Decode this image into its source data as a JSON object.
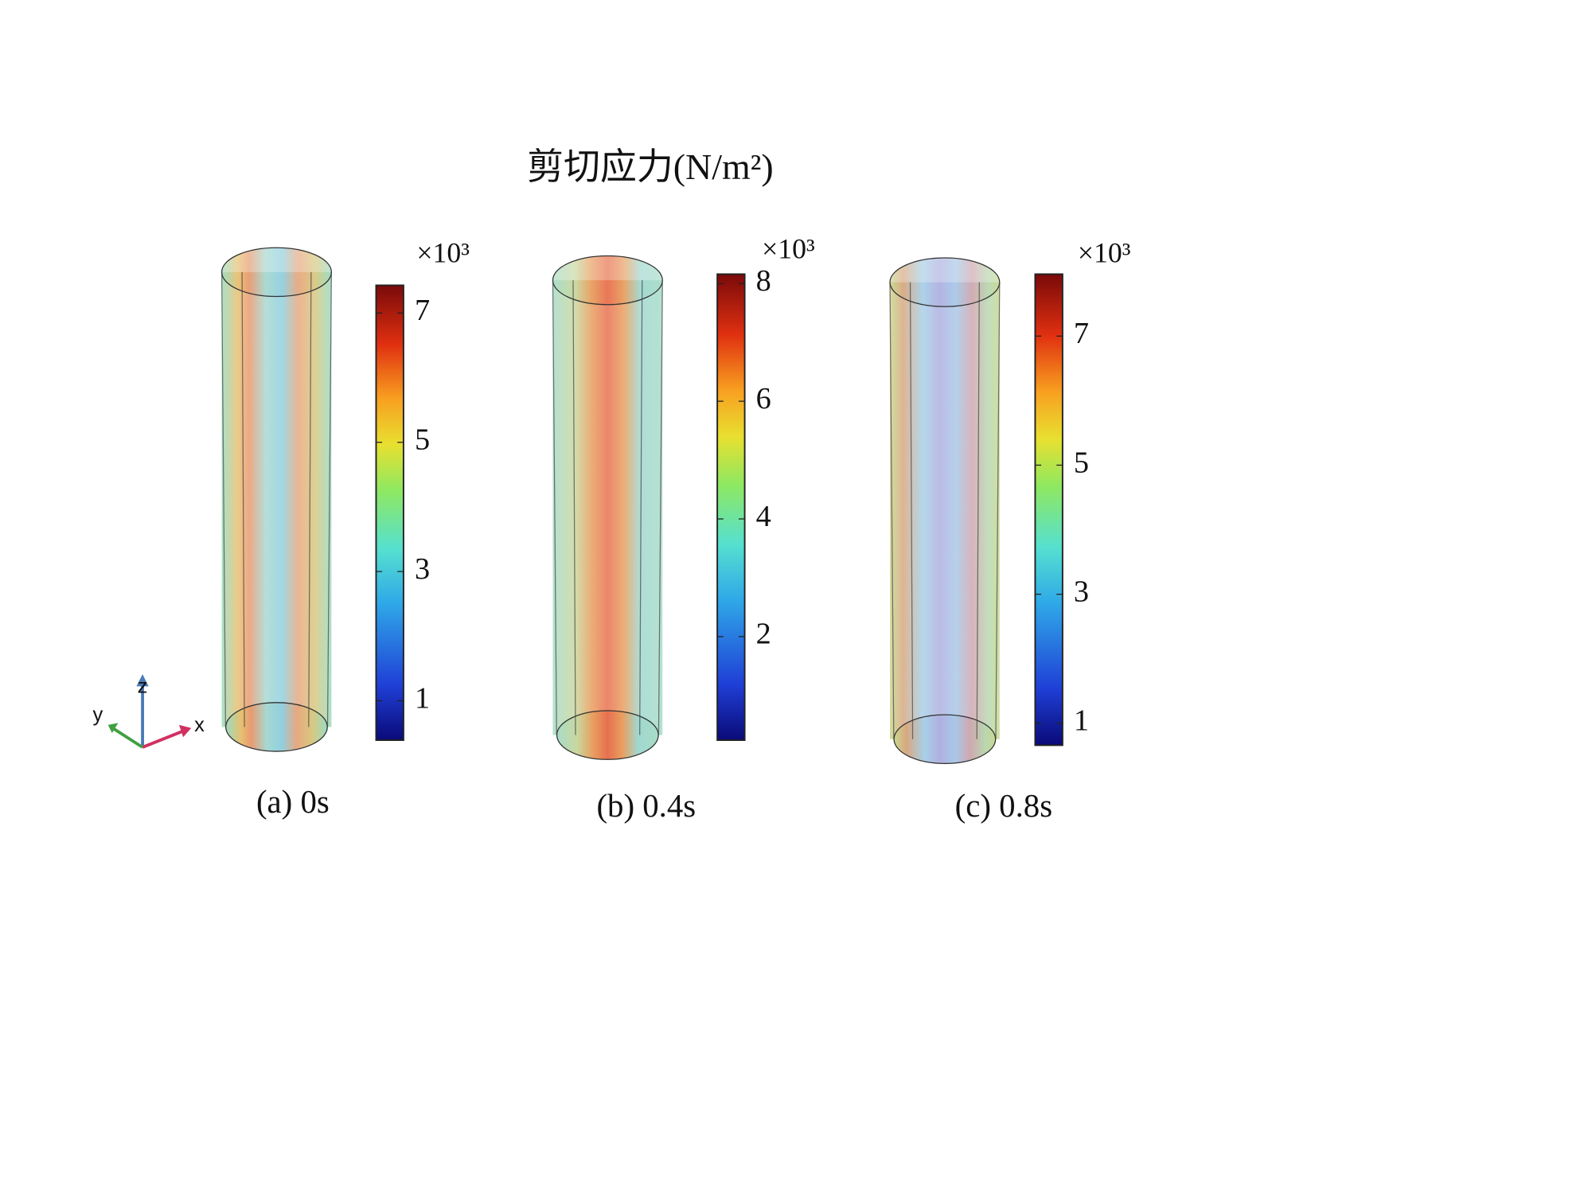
{
  "title": "剪切应力(N/m²)",
  "axis_triad": {
    "x": "x",
    "y": "y",
    "z": "z"
  },
  "panels": [
    {
      "caption": "(a) 0s",
      "multiplier": "×10³",
      "colorbar": {
        "lim": [
          0.39,
          7.43
        ],
        "ticks": [
          1,
          3,
          5,
          7
        ]
      }
    },
    {
      "caption": "(b) 0.4s",
      "multiplier": "×10³",
      "colorbar": {
        "lim": [
          0.24,
          8.16
        ],
        "ticks": [
          2,
          4,
          6,
          8
        ]
      }
    },
    {
      "caption": "(c) 0.8s",
      "multiplier": "×10³",
      "colorbar": {
        "lim": [
          0.66,
          7.96
        ],
        "ticks": [
          1,
          3,
          5,
          7
        ]
      }
    }
  ]
}
